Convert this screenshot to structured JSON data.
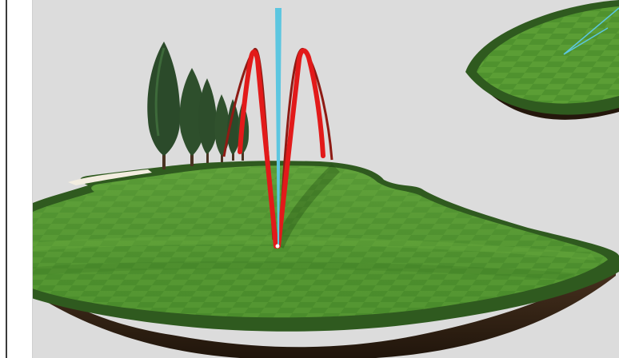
{
  "scene": {
    "type": "golf-hole-3d-shot-view",
    "colors": {
      "sky": "#dcdcdc",
      "fairway_light": "#5b9e35",
      "fairway_dark": "#3f7f26",
      "rough": "#2f5a1f",
      "soil": "#3a2718",
      "shot_trace_primary": "#e21a1a",
      "shot_trace_secondary": "#8e1b14",
      "aim_marker": "#5cc6e0",
      "tree": "#2b4a2a",
      "sand": "#f3ede0"
    },
    "elements": {
      "trees": "tree-group",
      "shot_traces": "ball-flight-trace",
      "aim_line": "vertical-aim-marker",
      "distant_green": "green-island"
    }
  }
}
